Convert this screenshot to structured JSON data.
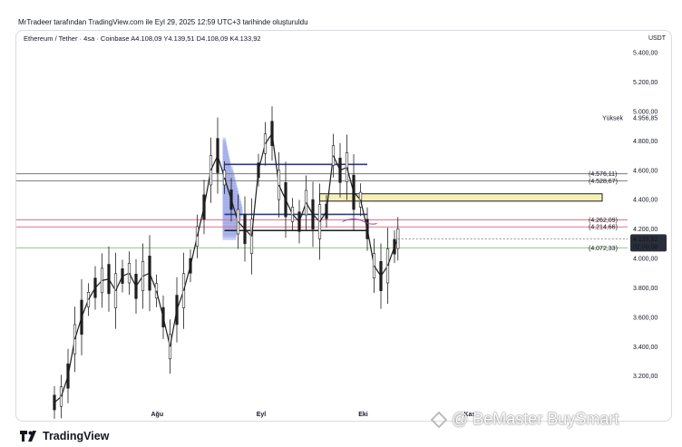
{
  "header": {
    "creator_text": "MrTradeer tarafından TradingView.com ile Eyl 29, 2025 12:59 UTC+3 tarihinde oluşturuldu"
  },
  "symbol_bar": {
    "text": "Ethereum / Tether · 4sa · Coinbase  A4.108,09  Y4.139,51  D4.108,09  K4.133,92"
  },
  "currency": "USDT",
  "footer": {
    "brand": "TradingView"
  },
  "watermark": {
    "text": "@ BeMaster BuySmart"
  },
  "colors": {
    "up": "#1e1e1e",
    "down": "#1e1e1e",
    "accent_blue": "#2b3a8c",
    "red_line": "#e0738a",
    "green_line": "#8fc48f",
    "yellow_box": "#f6efb8",
    "profile": "#9aa6e8"
  },
  "chart_data": {
    "type": "line",
    "price_ticks": [
      "5.400,00",
      "5.200,00",
      "5.000,00",
      "4.800,00",
      "4.600,00",
      "4.400,00",
      "4.200,00",
      "4.000,00",
      "3.800,00",
      "3.600,00",
      "3.400,00",
      "3.200,00"
    ],
    "price_tick_values": [
      5400,
      5200,
      5000,
      4800,
      4600,
      4400,
      4200,
      4000,
      3800,
      3600,
      3400,
      3200
    ],
    "time_labels": [
      "Ağu",
      "Eyl",
      "Eki",
      "Kas"
    ],
    "ylim": [
      2970,
      5450
    ],
    "x_range_days": [
      0,
      120
    ],
    "time_label_days": [
      30,
      61,
      91,
      122
    ],
    "high_marker": {
      "label": "Yüksek",
      "value_text": "4.956,85",
      "value": 4956.85
    },
    "current_price": {
      "value_text": "4.133,92",
      "countdown": "02:00:08",
      "value": 4133.92
    },
    "horizontal_levels": [
      {
        "value": 4576.11,
        "label": "(4.576,11)",
        "color": "#7a7a7a"
      },
      {
        "value": 4528.67,
        "label": "(4.528,67)",
        "color": "#7a7a7a"
      },
      {
        "value": 4262.09,
        "label": "(4.262,09)",
        "color": "#e0738a"
      },
      {
        "value": 4214.66,
        "label": "(4.214,66)",
        "color": "#e0738a"
      },
      {
        "value": 4072.33,
        "label": "(4.072,33)",
        "color": "#8fc48f"
      }
    ],
    "segments": [
      {
        "day_start": 50,
        "day_end": 92,
        "value": 4640,
        "color": "#2b3a8c"
      },
      {
        "day_start": 50,
        "day_end": 92,
        "value": 4300,
        "color": "#2b3a8c"
      },
      {
        "day_start": 50,
        "day_end": 92,
        "value": 4190,
        "color": "#1e1e1e"
      }
    ],
    "zone_box": {
      "day_start": 78,
      "day_end": 140,
      "top": 4440,
      "bottom": 4390
    },
    "price_path": [
      [
        0,
        3020
      ],
      [
        2,
        3060
      ],
      [
        4,
        3200
      ],
      [
        6,
        3450
      ],
      [
        8,
        3600
      ],
      [
        10,
        3720
      ],
      [
        12,
        3800
      ],
      [
        14,
        3850
      ],
      [
        16,
        3860
      ],
      [
        18,
        3780
      ],
      [
        20,
        3880
      ],
      [
        22,
        3900
      ],
      [
        24,
        3810
      ],
      [
        26,
        3880
      ],
      [
        28,
        3900
      ],
      [
        30,
        3780
      ],
      [
        32,
        3600
      ],
      [
        34,
        3400
      ],
      [
        36,
        3650
      ],
      [
        38,
        3780
      ],
      [
        40,
        3950
      ],
      [
        42,
        4150
      ],
      [
        44,
        4350
      ],
      [
        46,
        4600
      ],
      [
        48,
        4700
      ],
      [
        50,
        4550
      ],
      [
        52,
        4400
      ],
      [
        54,
        4250
      ],
      [
        56,
        4200
      ],
      [
        58,
        4150
      ],
      [
        60,
        4600
      ],
      [
        62,
        4780
      ],
      [
        64,
        4850
      ],
      [
        66,
        4500
      ],
      [
        68,
        4400
      ],
      [
        70,
        4300
      ],
      [
        72,
        4250
      ],
      [
        74,
        4380
      ],
      [
        76,
        4300
      ],
      [
        78,
        4250
      ],
      [
        80,
        4320
      ],
      [
        82,
        4700
      ],
      [
        84,
        4600
      ],
      [
        86,
        4620
      ],
      [
        88,
        4450
      ],
      [
        90,
        4400
      ],
      [
        92,
        4200
      ],
      [
        94,
        3950
      ],
      [
        96,
        3880
      ],
      [
        98,
        3950
      ],
      [
        100,
        4080
      ],
      [
        101,
        4134
      ]
    ]
  }
}
